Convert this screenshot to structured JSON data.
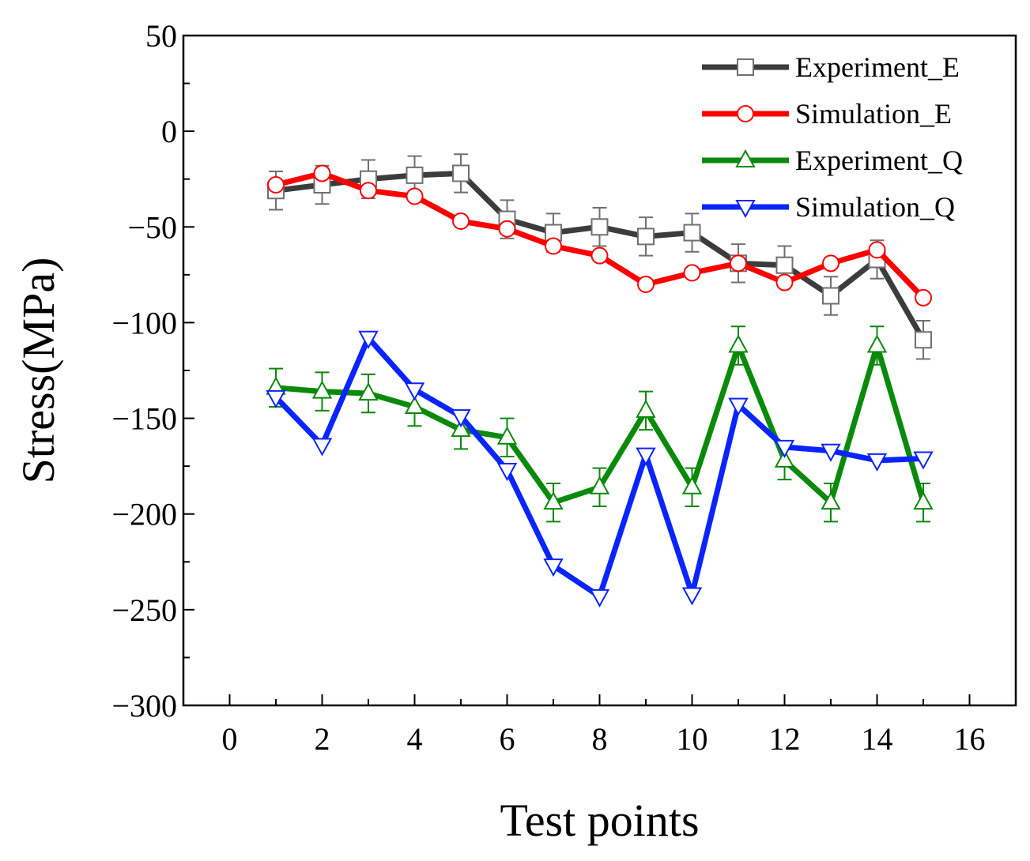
{
  "chart_data": {
    "type": "line",
    "title": "",
    "xlabel": "Test points",
    "ylabel": "Stress(MPa)",
    "xlim": [
      -1,
      17
    ],
    "ylim": [
      -300,
      50
    ],
    "xticks": [
      0,
      2,
      4,
      6,
      8,
      10,
      12,
      14,
      16
    ],
    "yticks": [
      50,
      0,
      -50,
      -100,
      -150,
      -200,
      -250,
      -300
    ],
    "ytick_labels": [
      "50",
      "0",
      "−50",
      "−100",
      "−150",
      "−200",
      "−250",
      "−300"
    ],
    "legend_position": "top-right",
    "x": [
      1,
      2,
      3,
      4,
      5,
      6,
      7,
      8,
      9,
      10,
      11,
      12,
      13,
      14,
      15
    ],
    "series": [
      {
        "name": "Experiment_E",
        "color": "#3c3c3c",
        "marker": "square",
        "values": [
          -31,
          -28,
          -25,
          -23,
          -22,
          -46,
          -53,
          -50,
          -55,
          -53,
          -69,
          -70,
          -86,
          -67,
          -109
        ],
        "errors": [
          10,
          10,
          10,
          10,
          10,
          10,
          10,
          10,
          10,
          10,
          10,
          10,
          10,
          10,
          10
        ]
      },
      {
        "name": "Simulation_E",
        "color": "#ff0000",
        "marker": "circle",
        "values": [
          -28,
          -22,
          -31,
          -34,
          -47,
          -51,
          -60,
          -65,
          -80,
          -74,
          -69,
          -79,
          -69,
          -62,
          -87
        ],
        "errors": null
      },
      {
        "name": "Experiment_Q",
        "color": "#0a8a0a",
        "marker": "triangle-up",
        "values": [
          -134,
          -136,
          -137,
          -144,
          -156,
          -160,
          -194,
          -186,
          -146,
          -186,
          -112,
          -172,
          -194,
          -112,
          -194
        ],
        "errors": [
          10,
          10,
          10,
          10,
          10,
          10,
          10,
          10,
          10,
          10,
          10,
          10,
          10,
          10,
          10
        ]
      },
      {
        "name": "Simulation_Q",
        "color": "#0a24ff",
        "marker": "triangle-down",
        "values": [
          -139,
          -164,
          -108,
          -135,
          -149,
          -177,
          -227,
          -243,
          -169,
          -242,
          -143,
          -165,
          -167,
          -172,
          -171
        ],
        "errors": null
      }
    ]
  }
}
